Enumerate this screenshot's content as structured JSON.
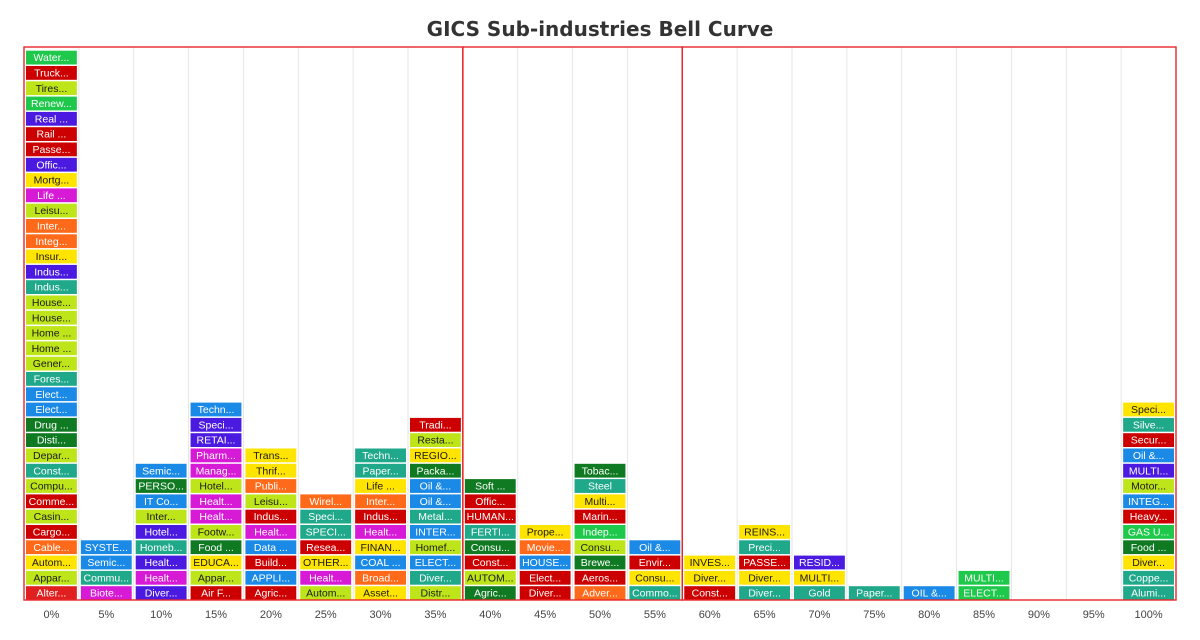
{
  "chart_data": {
    "type": "table",
    "title": "GICS Sub-industries Bell Curve",
    "x_ticks": [
      "0%",
      "5%",
      "10%",
      "15%",
      "20%",
      "25%",
      "30%",
      "35%",
      "40%",
      "45%",
      "50%",
      "55%",
      "60%",
      "65%",
      "70%",
      "75%",
      "80%",
      "85%",
      "90%",
      "95%",
      "100%"
    ],
    "grid": true,
    "highlight_ranges": [
      [
        0,
        35
      ],
      [
        40,
        55
      ],
      [
        60,
        100
      ]
    ],
    "columns": [
      {
        "x": "0%",
        "items": [
          {
            "label": "Alter...",
            "color": "#e02020"
          },
          {
            "label": "Appar...",
            "color": "#bde51a"
          },
          {
            "label": "Autom...",
            "color": "#ffe400"
          },
          {
            "label": "Cable...",
            "color": "#ff6a1a"
          },
          {
            "label": "Cargo...",
            "color": "#cc0000"
          },
          {
            "label": "Casin...",
            "color": "#bde51a"
          },
          {
            "label": "Comme...",
            "color": "#cc0000"
          },
          {
            "label": "Compu...",
            "color": "#bde51a"
          },
          {
            "label": "Const...",
            "color": "#1fa88a"
          },
          {
            "label": "Depar...",
            "color": "#bde51a"
          },
          {
            "label": "Disti...",
            "color": "#0f7a22"
          },
          {
            "label": "Drug ...",
            "color": "#0f7a22"
          },
          {
            "label": "Elect...",
            "color": "#1b8ae6"
          },
          {
            "label": "Elect...",
            "color": "#1b8ae6"
          },
          {
            "label": "Fores...",
            "color": "#1fa88a"
          },
          {
            "label": "Gener...",
            "color": "#bde51a"
          },
          {
            "label": "Home ...",
            "color": "#bde51a"
          },
          {
            "label": "Home ...",
            "color": "#bde51a"
          },
          {
            "label": "House...",
            "color": "#bde51a"
          },
          {
            "label": "House...",
            "color": "#bde51a"
          },
          {
            "label": "Indus...",
            "color": "#1fa88a"
          },
          {
            "label": "Indus...",
            "color": "#4a1ae0"
          },
          {
            "label": "Insur...",
            "color": "#ffe400"
          },
          {
            "label": "Integ...",
            "color": "#ff6a1a"
          },
          {
            "label": "Inter...",
            "color": "#ff6a1a"
          },
          {
            "label": "Leisu...",
            "color": "#bde51a"
          },
          {
            "label": "Life ...",
            "color": "#d61ad6"
          },
          {
            "label": "Mortg...",
            "color": "#ffe400"
          },
          {
            "label": "Offic...",
            "color": "#4a1ae0"
          },
          {
            "label": "Passe...",
            "color": "#cc0000"
          },
          {
            "label": "Rail ...",
            "color": "#cc0000"
          },
          {
            "label": "Real ...",
            "color": "#4a1ae0"
          },
          {
            "label": "Renew...",
            "color": "#1ec84a"
          },
          {
            "label": "Tires...",
            "color": "#bde51a"
          },
          {
            "label": "Truck...",
            "color": "#cc0000"
          },
          {
            "label": "Water...",
            "color": "#1ec84a"
          }
        ]
      },
      {
        "x": "5%",
        "items": [
          {
            "label": "Biote...",
            "color": "#d61ad6"
          },
          {
            "label": "Commu...",
            "color": "#1fa88a"
          },
          {
            "label": "Semic...",
            "color": "#1b8ae6"
          },
          {
            "label": "SYSTE...",
            "color": "#1b8ae6"
          }
        ]
      },
      {
        "x": "10%",
        "items": [
          {
            "label": "Diver...",
            "color": "#4a1ae0"
          },
          {
            "label": "Healt...",
            "color": "#d61ad6"
          },
          {
            "label": "Healt...",
            "color": "#4a1ae0"
          },
          {
            "label": "Homeb...",
            "color": "#1fa88a"
          },
          {
            "label": "Hotel...",
            "color": "#4a1ae0"
          },
          {
            "label": "Inter...",
            "color": "#bde51a"
          },
          {
            "label": "IT Co...",
            "color": "#1b8ae6"
          },
          {
            "label": "PERSO...",
            "color": "#0f7a22"
          },
          {
            "label": "Semic...",
            "color": "#1b8ae6"
          }
        ]
      },
      {
        "x": "15%",
        "items": [
          {
            "label": "Air F...",
            "color": "#cc0000"
          },
          {
            "label": "Appar...",
            "color": "#bde51a"
          },
          {
            "label": "EDUCA...",
            "color": "#ffe400"
          },
          {
            "label": "Food ...",
            "color": "#0f7a22"
          },
          {
            "label": "Footw...",
            "color": "#bde51a"
          },
          {
            "label": "Healt...",
            "color": "#d61ad6"
          },
          {
            "label": "Healt...",
            "color": "#d61ad6"
          },
          {
            "label": "Hotel...",
            "color": "#bde51a"
          },
          {
            "label": "Manag...",
            "color": "#d61ad6"
          },
          {
            "label": "Pharm...",
            "color": "#d61ad6"
          },
          {
            "label": "RETAI...",
            "color": "#4a1ae0"
          },
          {
            "label": "Speci...",
            "color": "#4a1ae0"
          },
          {
            "label": "Techn...",
            "color": "#1b8ae6"
          }
        ]
      },
      {
        "x": "20%",
        "items": [
          {
            "label": "Agric...",
            "color": "#cc0000"
          },
          {
            "label": "APPLI...",
            "color": "#1b8ae6"
          },
          {
            "label": "Build...",
            "color": "#cc0000"
          },
          {
            "label": "Data ...",
            "color": "#1b8ae6"
          },
          {
            "label": "Healt...",
            "color": "#d61ad6"
          },
          {
            "label": "Indus...",
            "color": "#cc0000"
          },
          {
            "label": "Leisu...",
            "color": "#bde51a"
          },
          {
            "label": "Publi...",
            "color": "#ff6a1a"
          },
          {
            "label": "Thrif...",
            "color": "#ffe400"
          },
          {
            "label": "Trans...",
            "color": "#ffe400"
          }
        ]
      },
      {
        "x": "25%",
        "items": [
          {
            "label": "Autom...",
            "color": "#bde51a"
          },
          {
            "label": "Healt...",
            "color": "#d61ad6"
          },
          {
            "label": "OTHER...",
            "color": "#ffe400"
          },
          {
            "label": "Resea...",
            "color": "#cc0000"
          },
          {
            "label": "SPECI...",
            "color": "#1fa88a"
          },
          {
            "label": "Speci...",
            "color": "#1fa88a"
          },
          {
            "label": "Wirel...",
            "color": "#ff6a1a"
          }
        ]
      },
      {
        "x": "30%",
        "items": [
          {
            "label": "Asset...",
            "color": "#ffe400"
          },
          {
            "label": "Broad...",
            "color": "#ff6a1a"
          },
          {
            "label": "COAL ...",
            "color": "#1b8ae6"
          },
          {
            "label": "FINAN...",
            "color": "#ffe400"
          },
          {
            "label": "Healt...",
            "color": "#d61ad6"
          },
          {
            "label": "Indus...",
            "color": "#cc0000"
          },
          {
            "label": "Inter...",
            "color": "#ff6a1a"
          },
          {
            "label": "Life ...",
            "color": "#ffe400"
          },
          {
            "label": "Paper...",
            "color": "#1fa88a"
          },
          {
            "label": "Techn...",
            "color": "#1fa88a"
          }
        ]
      },
      {
        "x": "35%",
        "items": [
          {
            "label": "Distr...",
            "color": "#bde51a"
          },
          {
            "label": "Diver...",
            "color": "#1fa88a"
          },
          {
            "label": "ELECT...",
            "color": "#1b8ae6"
          },
          {
            "label": "Homef...",
            "color": "#bde51a"
          },
          {
            "label": "INTER...",
            "color": "#1b8ae6"
          },
          {
            "label": "Metal...",
            "color": "#1fa88a"
          },
          {
            "label": "Oil &...",
            "color": "#1b8ae6"
          },
          {
            "label": "Oil &...",
            "color": "#1b8ae6"
          },
          {
            "label": "Packa...",
            "color": "#0f7a22"
          },
          {
            "label": "REGIO...",
            "color": "#ffe400"
          },
          {
            "label": "Resta...",
            "color": "#bde51a"
          },
          {
            "label": "Tradi...",
            "color": "#cc0000"
          }
        ]
      },
      {
        "x": "40%",
        "items": [
          {
            "label": "Agric...",
            "color": "#0f7a22"
          },
          {
            "label": "AUTOM...",
            "color": "#bde51a"
          },
          {
            "label": "Const...",
            "color": "#cc0000"
          },
          {
            "label": "Consu...",
            "color": "#0f7a22"
          },
          {
            "label": "FERTI...",
            "color": "#1fa88a"
          },
          {
            "label": "HUMAN...",
            "color": "#cc0000"
          },
          {
            "label": "Offic...",
            "color": "#cc0000"
          },
          {
            "label": "Soft ...",
            "color": "#0f7a22"
          }
        ]
      },
      {
        "x": "45%",
        "items": [
          {
            "label": "Diver...",
            "color": "#cc0000"
          },
          {
            "label": "Elect...",
            "color": "#cc0000"
          },
          {
            "label": "HOUSE...",
            "color": "#1b8ae6"
          },
          {
            "label": "Movie...",
            "color": "#ff6a1a"
          },
          {
            "label": "Prope...",
            "color": "#ffe400"
          }
        ]
      },
      {
        "x": "50%",
        "items": [
          {
            "label": "Adver...",
            "color": "#ff6a1a"
          },
          {
            "label": "Aeros...",
            "color": "#cc0000"
          },
          {
            "label": "Brewe...",
            "color": "#0f7a22"
          },
          {
            "label": "Consu...",
            "color": "#bde51a"
          },
          {
            "label": "Indep...",
            "color": "#1ec84a"
          },
          {
            "label": "Marin...",
            "color": "#cc0000"
          },
          {
            "label": "Multi...",
            "color": "#ffe400"
          },
          {
            "label": "Steel",
            "color": "#1fa88a"
          },
          {
            "label": "Tobac...",
            "color": "#0f7a22"
          }
        ]
      },
      {
        "x": "55%",
        "items": [
          {
            "label": "Commo...",
            "color": "#1fa88a"
          },
          {
            "label": "Consu...",
            "color": "#ffe400"
          },
          {
            "label": "Envir...",
            "color": "#cc0000"
          },
          {
            "label": "Oil &...",
            "color": "#1b8ae6"
          }
        ]
      },
      {
        "x": "60%",
        "items": [
          {
            "label": "Const...",
            "color": "#cc0000"
          },
          {
            "label": "Diver...",
            "color": "#ffe400"
          },
          {
            "label": "INVES...",
            "color": "#ffe400"
          }
        ]
      },
      {
        "x": "65%",
        "items": [
          {
            "label": "Diver...",
            "color": "#1fa88a"
          },
          {
            "label": "Diver...",
            "color": "#ffe400"
          },
          {
            "label": "PASSE...",
            "color": "#cc0000"
          },
          {
            "label": "Preci...",
            "color": "#1fa88a"
          },
          {
            "label": "REINS...",
            "color": "#ffe400"
          }
        ]
      },
      {
        "x": "70%",
        "items": [
          {
            "label": "Gold",
            "color": "#1fa88a"
          },
          {
            "label": "MULTI...",
            "color": "#ffe400"
          },
          {
            "label": "RESID...",
            "color": "#4a1ae0"
          }
        ]
      },
      {
        "x": "75%",
        "items": [
          {
            "label": "Paper...",
            "color": "#1fa88a"
          }
        ]
      },
      {
        "x": "80%",
        "items": [
          {
            "label": "OIL &...",
            "color": "#1b8ae6"
          }
        ]
      },
      {
        "x": "85%",
        "items": [
          {
            "label": "ELECT...",
            "color": "#1ec84a"
          },
          {
            "label": "MULTI...",
            "color": "#1ec84a"
          }
        ]
      },
      {
        "x": "90%",
        "items": []
      },
      {
        "x": "95%",
        "items": []
      },
      {
        "x": "100%",
        "items": [
          {
            "label": "Alumi...",
            "color": "#1fa88a"
          },
          {
            "label": "Coppe...",
            "color": "#1fa88a"
          },
          {
            "label": "Diver...",
            "color": "#ffe400"
          },
          {
            "label": "Food ...",
            "color": "#0f7a22"
          },
          {
            "label": "GAS U...",
            "color": "#1ec84a"
          },
          {
            "label": "Heavy...",
            "color": "#cc0000"
          },
          {
            "label": "INTEG...",
            "color": "#1b8ae6"
          },
          {
            "label": "Motor...",
            "color": "#bde51a"
          },
          {
            "label": "MULTI...",
            "color": "#4a1ae0"
          },
          {
            "label": "Oil &...",
            "color": "#1b8ae6"
          },
          {
            "label": "Secur...",
            "color": "#cc0000"
          },
          {
            "label": "Silve...",
            "color": "#1fa88a"
          },
          {
            "label": "Speci...",
            "color": "#ffe400"
          }
        ]
      }
    ]
  }
}
